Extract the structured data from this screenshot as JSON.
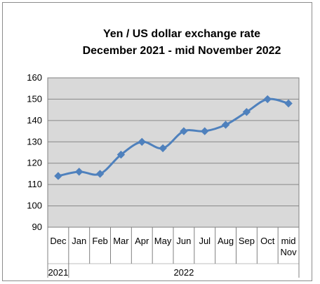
{
  "chart_data": {
    "type": "line",
    "title": "Yen / US dollar exchange rate",
    "subtitle": "December 2021 - mid November 2022",
    "xlabel": "",
    "ylabel": "",
    "categories": [
      "Dec",
      "Jan",
      "Feb",
      "Mar",
      "Apr",
      "May",
      "Jun",
      "Jul",
      "Aug",
      "Sep",
      "Oct",
      "mid Nov"
    ],
    "category_groups": [
      {
        "label": "2021",
        "span": 1
      },
      {
        "label": "2022",
        "span": 11
      }
    ],
    "series": [
      {
        "values": [
          114,
          116,
          115,
          124,
          130,
          127,
          135,
          135,
          138,
          144,
          150,
          148
        ]
      }
    ],
    "ylim": [
      90,
      160
    ],
    "yticks": [
      90,
      100,
      110,
      120,
      130,
      140,
      150,
      160
    ],
    "grid": true,
    "legend": "none",
    "colors": {
      "line": "#4f81bd",
      "plot_background": "#d9d9d9",
      "grid": "#888888"
    }
  }
}
